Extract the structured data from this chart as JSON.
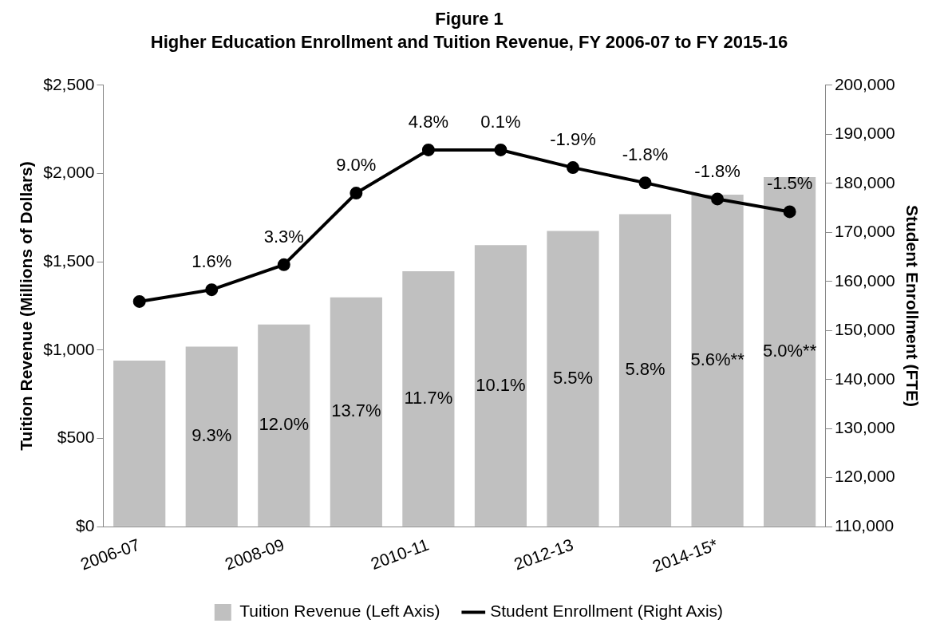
{
  "chart_data": {
    "type": "bar",
    "title": "Figure 1",
    "subtitle": "Higher Education Enrollment and Tuition Revenue, FY 2006-07 to FY 2015-16",
    "categories": [
      "2006-07",
      null,
      "2008-09",
      null,
      "2010-11",
      null,
      "2012-13",
      null,
      "2014-15*",
      null
    ],
    "series": [
      {
        "name": "Tuition Revenue (Left Axis)",
        "color": "#c0c0c0",
        "values": [
          940,
          1020,
          1145,
          1298,
          1446,
          1594,
          1675,
          1770,
          1880,
          1980
        ]
      },
      {
        "name": "Student Enrollment (Right Axis)",
        "type": "line",
        "axis": "y2",
        "color": "#000000",
        "marker": "circle",
        "values": [
          155900,
          158300,
          163400,
          178000,
          186800,
          186800,
          183200,
          180100,
          176800,
          174200
        ]
      }
    ],
    "annotations": [
      "1.6%",
      "9.3%",
      "3.3%",
      "12.0%",
      "9.0%",
      "13.7%",
      "4.8%",
      "11.7%",
      "0.1%",
      "10.1%",
      "-1.9%",
      "5.5%",
      "-1.8%",
      "5.8%",
      "-1.8%",
      "5.6%**",
      "-1.5%",
      "5.0%**"
    ],
    "ylabel": "Tuition Revenue (Millions of Dollars)",
    "y2label": "Student Enrollment (FTE)",
    "ylim": [
      0,
      2500
    ],
    "yticks": [
      {
        "value": 0,
        "label": "$0"
      },
      {
        "value": 500,
        "label": "$500"
      },
      {
        "value": 1000,
        "label": "$1,000"
      },
      {
        "value": 1500,
        "label": "$1,500"
      },
      {
        "value": 2000,
        "label": "$2,000"
      },
      {
        "value": 2500,
        "label": "$2,500"
      }
    ],
    "y2lim": [
      110000,
      200000
    ],
    "y2ticks": [
      {
        "value": 110000,
        "label": "110,000"
      },
      {
        "value": 120000,
        "label": "120,000"
      },
      {
        "value": 130000,
        "label": "130,000"
      },
      {
        "value": 140000,
        "label": "140,000"
      },
      {
        "value": 150000,
        "label": "150,000"
      },
      {
        "value": 160000,
        "label": "160,000"
      },
      {
        "value": 170000,
        "label": "170,000"
      },
      {
        "value": 180000,
        "label": "180,000"
      },
      {
        "value": 190000,
        "label": "190,000"
      },
      {
        "value": 200000,
        "label": "200,000"
      }
    ],
    "grid": false,
    "legend": "bottom"
  }
}
